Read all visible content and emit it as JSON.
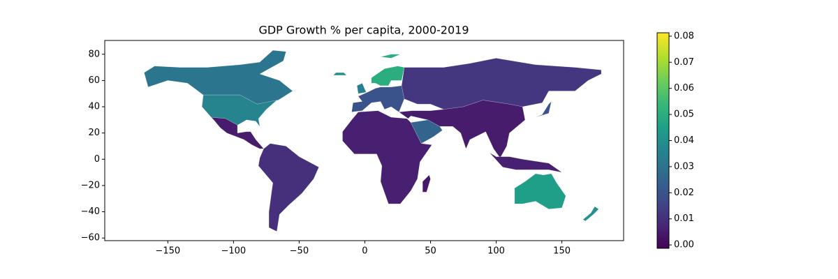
{
  "chart_data": {
    "type": "choropleth",
    "title": "GDP Growth % per capita, 2000-2019",
    "values": [
      0.031,
      0.036,
      0.005,
      0.01,
      0.006,
      0.004,
      0.02,
      0.05,
      0.012,
      0.005,
      0.025,
      0.045,
      0.04,
      0.006,
      0.02,
      0.035,
      0.05,
      0.04
    ],
    "xlim": [
      -198,
      197
    ],
    "ylim": [
      -62,
      90.5
    ],
    "xticks": [
      {
        "value": -150,
        "label": "−150"
      },
      {
        "value": -100,
        "label": "−100"
      },
      {
        "value": -50,
        "label": "−50"
      },
      0,
      50,
      100,
      150
    ],
    "yticks": [
      {
        "value": -60,
        "label": "−60"
      },
      {
        "value": -40,
        "label": "−40"
      },
      {
        "value": -20,
        "label": "−20"
      },
      0,
      20,
      40,
      60,
      80
    ],
    "colormap": "viridis",
    "clim": [
      -0.0013,
      0.0813
    ],
    "cticks": [
      {
        "value": 0,
        "label": "0.00"
      },
      {
        "value": 0.01,
        "label": "0.01"
      },
      {
        "value": 0.02,
        "label": "0.02"
      },
      {
        "value": 0.03,
        "label": "0.03"
      },
      {
        "value": 0.04,
        "label": "0.04"
      },
      {
        "value": 0.05,
        "label": "0.05"
      },
      {
        "value": 0.06,
        "label": "0.06"
      },
      {
        "value": 0.07,
        "label": "0.07"
      },
      {
        "value": 0.08,
        "label": "0.08"
      }
    ]
  }
}
